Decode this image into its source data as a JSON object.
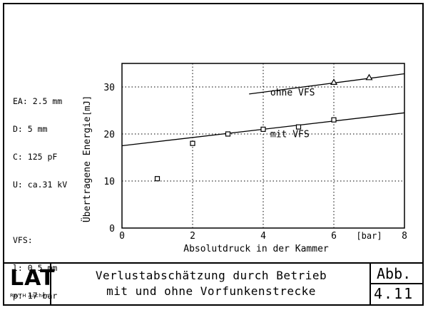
{
  "params": {
    "lines": [
      "EA: 2.5 mm",
      "D: 5 mm",
      "C: 125 pF",
      "U: ca.31 kV"
    ],
    "vfs_title": "VFS:",
    "vfs_lines": [
      "l: 0.5 mm",
      "p: 17 bar"
    ]
  },
  "footer": {
    "logo": "LAT",
    "logo_sub": "RWTH Aachen",
    "caption_line1": "Verlustabschätzung durch Betrieb",
    "caption_line2": "mit und ohne Vorfunkenstrecke",
    "abb_label": "Abb.",
    "abb_number": "4.11"
  },
  "chart_data": {
    "type": "scatter",
    "xlabel": "Absolutdruck in der Kammer",
    "x_unit": "[bar]",
    "ylabel": "Übertragene Energie",
    "y_unit": "[mJ]",
    "xlim": [
      0,
      8
    ],
    "ylim": [
      0,
      35
    ],
    "x_ticks": [
      "0",
      "2",
      "4",
      "6",
      "8"
    ],
    "y_ticks": [
      "0",
      "10",
      "20",
      "30"
    ],
    "grid": true,
    "series": [
      {
        "name": "ohne VFS",
        "marker": "triangle",
        "points": [
          [
            6,
            31
          ],
          [
            7,
            32
          ]
        ],
        "fit_line": [
          [
            3.6,
            28.5
          ],
          [
            8,
            32.8
          ]
        ]
      },
      {
        "name": "mit VFS",
        "marker": "square",
        "points": [
          [
            1,
            10.5
          ],
          [
            2,
            18
          ],
          [
            3,
            20
          ],
          [
            4,
            21
          ],
          [
            5,
            21.5
          ],
          [
            6,
            23
          ]
        ],
        "fit_line": [
          [
            0,
            17.5
          ],
          [
            8,
            24.5
          ]
        ]
      }
    ]
  }
}
